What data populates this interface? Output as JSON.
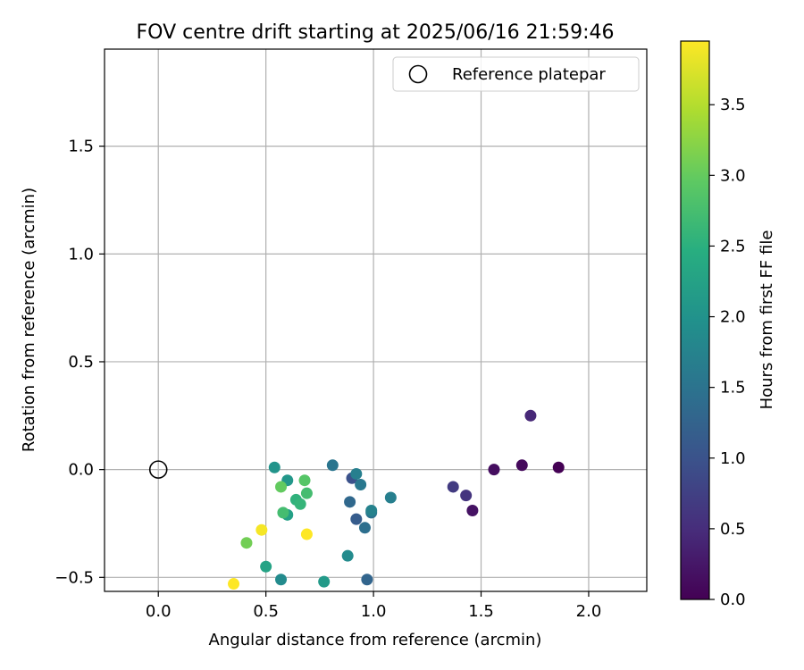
{
  "chart_data": {
    "type": "scatter",
    "title": "FOV centre drift starting at 2025/06/16 21:59:46",
    "xlabel": "Angular distance from reference (arcmin)",
    "ylabel": "Rotation from reference (arcmin)",
    "xlim": [
      -0.25,
      2.27
    ],
    "ylim": [
      -0.565,
      1.95
    ],
    "xticks": [
      0.0,
      0.5,
      1.0,
      1.5,
      2.0
    ],
    "xtick_labels": [
      "0.0",
      "0.5",
      "1.0",
      "1.5",
      "2.0"
    ],
    "yticks": [
      -0.5,
      0.0,
      0.5,
      1.0,
      1.5
    ],
    "ytick_labels": [
      "−0.5",
      "0.0",
      "0.5",
      "1.0",
      "1.5"
    ],
    "grid": true,
    "legend": {
      "placement": "top-right",
      "entries": [
        "Reference platepar"
      ]
    },
    "reference_point": {
      "name": "Reference platepar",
      "x": 0.0,
      "y": 0.0
    },
    "colorbar": {
      "label": "Hours from first FF file",
      "range": [
        0.0,
        3.95
      ],
      "ticks": [
        0.0,
        0.5,
        1.0,
        1.5,
        2.0,
        2.5,
        3.0,
        3.5
      ],
      "tick_labels": [
        "0.0",
        "0.5",
        "1.0",
        "1.5",
        "2.0",
        "2.5",
        "3.0",
        "3.5"
      ],
      "colormap": "viridis"
    },
    "points": [
      {
        "x": 1.86,
        "y": 0.01,
        "c": 0.0
      },
      {
        "x": 1.69,
        "y": 0.02,
        "c": 0.1
      },
      {
        "x": 1.56,
        "y": 0.0,
        "c": 0.15
      },
      {
        "x": 1.46,
        "y": -0.19,
        "c": 0.2
      },
      {
        "x": 1.73,
        "y": 0.25,
        "c": 0.45
      },
      {
        "x": 1.43,
        "y": -0.12,
        "c": 0.6
      },
      {
        "x": 1.37,
        "y": -0.08,
        "c": 0.7
      },
      {
        "x": 0.9,
        "y": -0.04,
        "c": 1.0
      },
      {
        "x": 0.92,
        "y": -0.23,
        "c": 1.15
      },
      {
        "x": 0.97,
        "y": -0.51,
        "c": 1.3
      },
      {
        "x": 0.89,
        "y": -0.15,
        "c": 1.35
      },
      {
        "x": 0.96,
        "y": -0.27,
        "c": 1.45
      },
      {
        "x": 0.99,
        "y": -0.2,
        "c": 1.5
      },
      {
        "x": 0.81,
        "y": 0.02,
        "c": 1.55
      },
      {
        "x": 0.94,
        "y": -0.07,
        "c": 1.6
      },
      {
        "x": 0.92,
        "y": -0.02,
        "c": 1.7
      },
      {
        "x": 1.08,
        "y": -0.13,
        "c": 1.7
      },
      {
        "x": 0.99,
        "y": -0.19,
        "c": 1.75
      },
      {
        "x": 0.57,
        "y": -0.51,
        "c": 1.9
      },
      {
        "x": 0.88,
        "y": -0.4,
        "c": 1.9
      },
      {
        "x": 0.54,
        "y": 0.01,
        "c": 2.05
      },
      {
        "x": 0.6,
        "y": -0.05,
        "c": 2.1
      },
      {
        "x": 0.77,
        "y": -0.52,
        "c": 2.15
      },
      {
        "x": 0.6,
        "y": -0.21,
        "c": 2.25
      },
      {
        "x": 0.5,
        "y": -0.45,
        "c": 2.3
      },
      {
        "x": 0.64,
        "y": -0.14,
        "c": 2.55
      },
      {
        "x": 0.66,
        "y": -0.16,
        "c": 2.6
      },
      {
        "x": 0.69,
        "y": -0.11,
        "c": 2.75
      },
      {
        "x": 0.58,
        "y": -0.2,
        "c": 2.75
      },
      {
        "x": 0.68,
        "y": -0.05,
        "c": 2.9
      },
      {
        "x": 0.57,
        "y": -0.08,
        "c": 3.0
      },
      {
        "x": 0.41,
        "y": -0.34,
        "c": 3.1
      },
      {
        "x": 0.48,
        "y": -0.28,
        "c": 3.9
      },
      {
        "x": 0.69,
        "y": -0.3,
        "c": 3.95
      },
      {
        "x": 0.35,
        "y": -0.53,
        "c": 3.95
      }
    ]
  }
}
